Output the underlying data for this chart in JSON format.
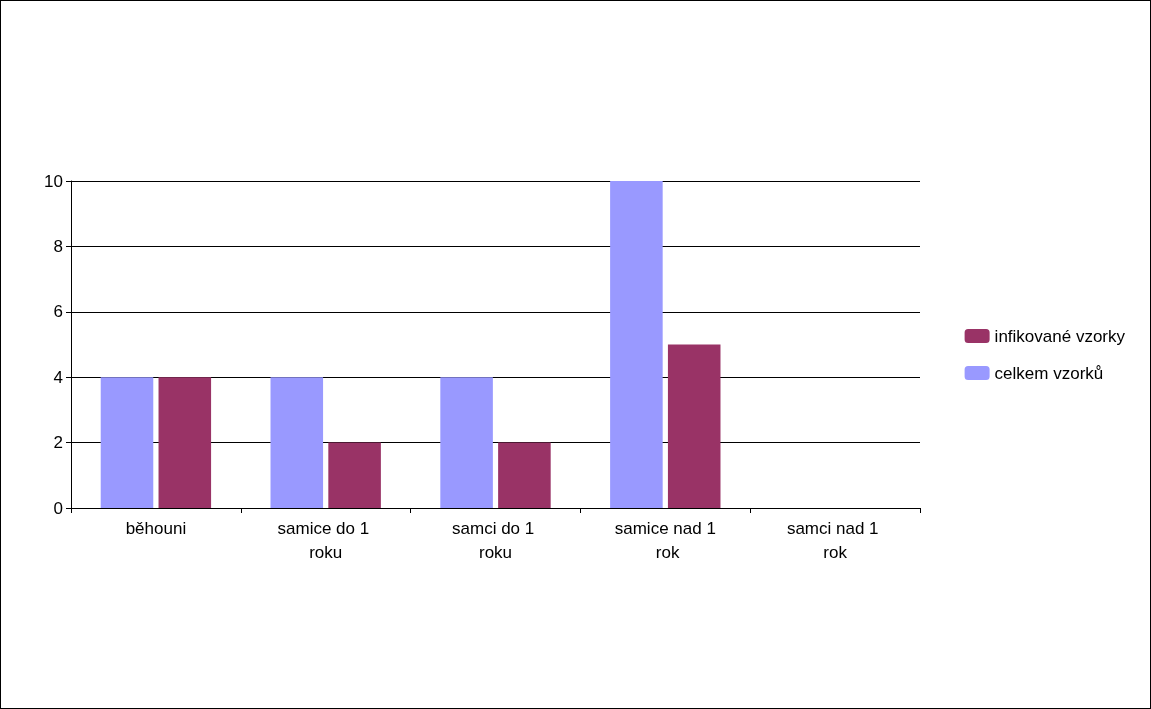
{
  "chart_data": {
    "type": "bar",
    "categories": [
      "běhouni",
      "samice do 1 roku",
      "samci do 1 roku",
      "samice nad 1 rok",
      "samci nad 1 rok"
    ],
    "series": [
      {
        "name": "celkem vzorků",
        "color": "#9999ff",
        "values": [
          4,
          4,
          4,
          10,
          0
        ]
      },
      {
        "name": "infikované vzorky",
        "color": "#993366",
        "values": [
          4,
          2,
          2,
          5,
          0
        ]
      }
    ],
    "ylim": [
      0,
      10
    ],
    "yticks": [
      0,
      2,
      4,
      6,
      8,
      10
    ],
    "grid": "y",
    "legend": "right"
  }
}
